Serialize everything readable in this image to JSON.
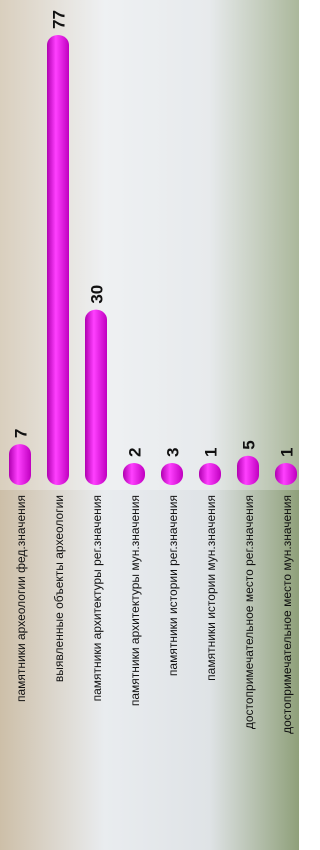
{
  "chart_data": {
    "type": "bar",
    "orientation": "vertical-rotated",
    "categories": [
      "памятники археологии фед.значения",
      "выявленные объекты археологии",
      "памятники  архитектуры рег.значения",
      "памятники архитектуры мун.значения",
      "памятники истории рег.значения",
      "памятники истории мун.значения",
      "достопримечательное место рег.значения",
      "достопримечательное место мун.значения"
    ],
    "values": [
      7,
      77,
      30,
      2,
      3,
      1,
      5,
      1
    ],
    "color": "#ff00ff"
  }
}
